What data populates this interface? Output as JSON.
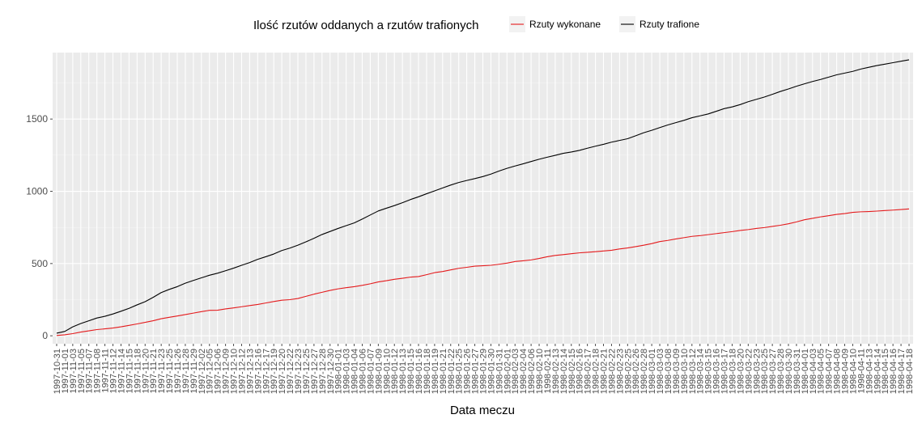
{
  "chart_data": {
    "type": "line",
    "title": "",
    "xlabel": "Data meczu",
    "ylabel": "",
    "legend": {
      "title": "Ilość rzutów oddanych a rzutów trafionych",
      "placement": "top",
      "entries": [
        {
          "name": "Rzuty wykonane",
          "color": "#e41a1c"
        },
        {
          "name": "Rzuty trafione",
          "color": "#000000"
        }
      ]
    },
    "grid": true,
    "ylim": [
      -55,
      1960
    ],
    "yticks": [
      0,
      500,
      1000,
      1500
    ],
    "x": [
      "1997-10-31",
      "1997-11-01",
      "1997-11-03",
      "1997-11-05",
      "1997-11-07",
      "1997-11-08",
      "1997-11-11",
      "1997-11-12",
      "1997-11-14",
      "1997-11-15",
      "1997-11-18",
      "1997-11-20",
      "1997-11-21",
      "1997-11-23",
      "1997-11-25",
      "1997-11-26",
      "1997-11-28",
      "1997-11-29",
      "1997-12-02",
      "1997-12-05",
      "1997-12-06",
      "1997-12-09",
      "1997-12-10",
      "1997-12-12",
      "1997-12-13",
      "1997-12-16",
      "1997-12-17",
      "1997-12-19",
      "1997-12-20",
      "1997-12-22",
      "1997-12-23",
      "1997-12-25",
      "1997-12-27",
      "1997-12-28",
      "1997-12-30",
      "1998-01-01",
      "1998-01-03",
      "1998-01-04",
      "1998-01-06",
      "1998-01-07",
      "1998-01-09",
      "1998-01-10",
      "1998-01-12",
      "1998-01-13",
      "1998-01-15",
      "1998-01-16",
      "1998-01-18",
      "1998-01-19",
      "1998-01-21",
      "1998-01-22",
      "1998-01-25",
      "1998-01-26",
      "1998-01-27",
      "1998-01-29",
      "1998-01-30",
      "1998-01-31",
      "1998-02-01",
      "1998-02-03",
      "1998-02-04",
      "1998-02-06",
      "1998-02-10",
      "1998-02-11",
      "1998-02-13",
      "1998-02-14",
      "1998-02-15",
      "1998-02-16",
      "1998-02-17",
      "1998-02-18",
      "1998-02-21",
      "1998-02-22",
      "1998-02-23",
      "1998-02-25",
      "1998-02-26",
      "1998-02-28",
      "1998-03-01",
      "1998-03-03",
      "1998-03-08",
      "1998-03-09",
      "1998-03-10",
      "1998-03-12",
      "1998-03-14",
      "1998-03-15",
      "1998-03-16",
      "1998-03-17",
      "1998-03-18",
      "1998-03-20",
      "1998-03-22",
      "1998-03-23",
      "1998-03-25",
      "1998-03-27",
      "1998-03-28",
      "1998-03-30",
      "1998-03-31",
      "1998-04-01",
      "1998-04-03",
      "1998-04-05",
      "1998-04-07",
      "1998-04-08",
      "1998-04-09",
      "1998-04-10",
      "1998-04-11",
      "1998-04-13",
      "1998-04-14",
      "1998-04-15",
      "1998-04-16",
      "1998-04-17",
      "1998-04-18"
    ],
    "series": [
      {
        "name": "Rzuty wykonane",
        "color": "#e41a1c",
        "values": [
          2,
          7,
          15,
          26,
          34,
          43,
          48,
          54,
          62,
          72,
          82,
          93,
          104,
          118,
          128,
          137,
          147,
          157,
          167,
          176,
          177,
          186,
          193,
          201,
          209,
          217,
          227,
          237,
          246,
          250,
          258,
          273,
          288,
          301,
          314,
          325,
          333,
          340,
          349,
          360,
          373,
          381,
          391,
          398,
          406,
          410,
          423,
          437,
          445,
          456,
          467,
          474,
          482,
          485,
          488,
          495,
          503,
          514,
          519,
          525,
          535,
          547,
          556,
          562,
          568,
          574,
          578,
          582,
          587,
          592,
          601,
          608,
          617,
          627,
          638,
          652,
          660,
          670,
          679,
          688,
          693,
          700,
          707,
          714,
          721,
          729,
          735,
          743,
          749,
          757,
          765,
          775,
          788,
          803,
          813,
          823,
          831,
          840,
          846,
          854,
          858,
          860,
          863,
          867,
          870,
          874,
          878
        ]
      },
      {
        "name": "Rzuty trafione",
        "color": "#000000",
        "values": [
          18,
          30,
          62,
          85,
          104,
          123,
          135,
          151,
          170,
          190,
          214,
          236,
          266,
          299,
          321,
          340,
          364,
          383,
          401,
          419,
          433,
          450,
          468,
          488,
          507,
          529,
          547,
          566,
          590,
          607,
          627,
          650,
          675,
          701,
          722,
          743,
          762,
          781,
          808,
          836,
          864,
          883,
          901,
          921,
          943,
          962,
          983,
          1003,
          1023,
          1043,
          1061,
          1075,
          1088,
          1102,
          1119,
          1140,
          1159,
          1175,
          1190,
          1206,
          1222,
          1236,
          1249,
          1263,
          1272,
          1283,
          1298,
          1312,
          1325,
          1340,
          1352,
          1364,
          1384,
          1405,
          1422,
          1441,
          1459,
          1475,
          1491,
          1509,
          1522,
          1535,
          1553,
          1572,
          1584,
          1600,
          1620,
          1636,
          1652,
          1671,
          1691,
          1708,
          1727,
          1744,
          1760,
          1774,
          1790,
          1806,
          1818,
          1830,
          1846,
          1858,
          1870,
          1880,
          1890,
          1900,
          1910
        ]
      }
    ]
  }
}
